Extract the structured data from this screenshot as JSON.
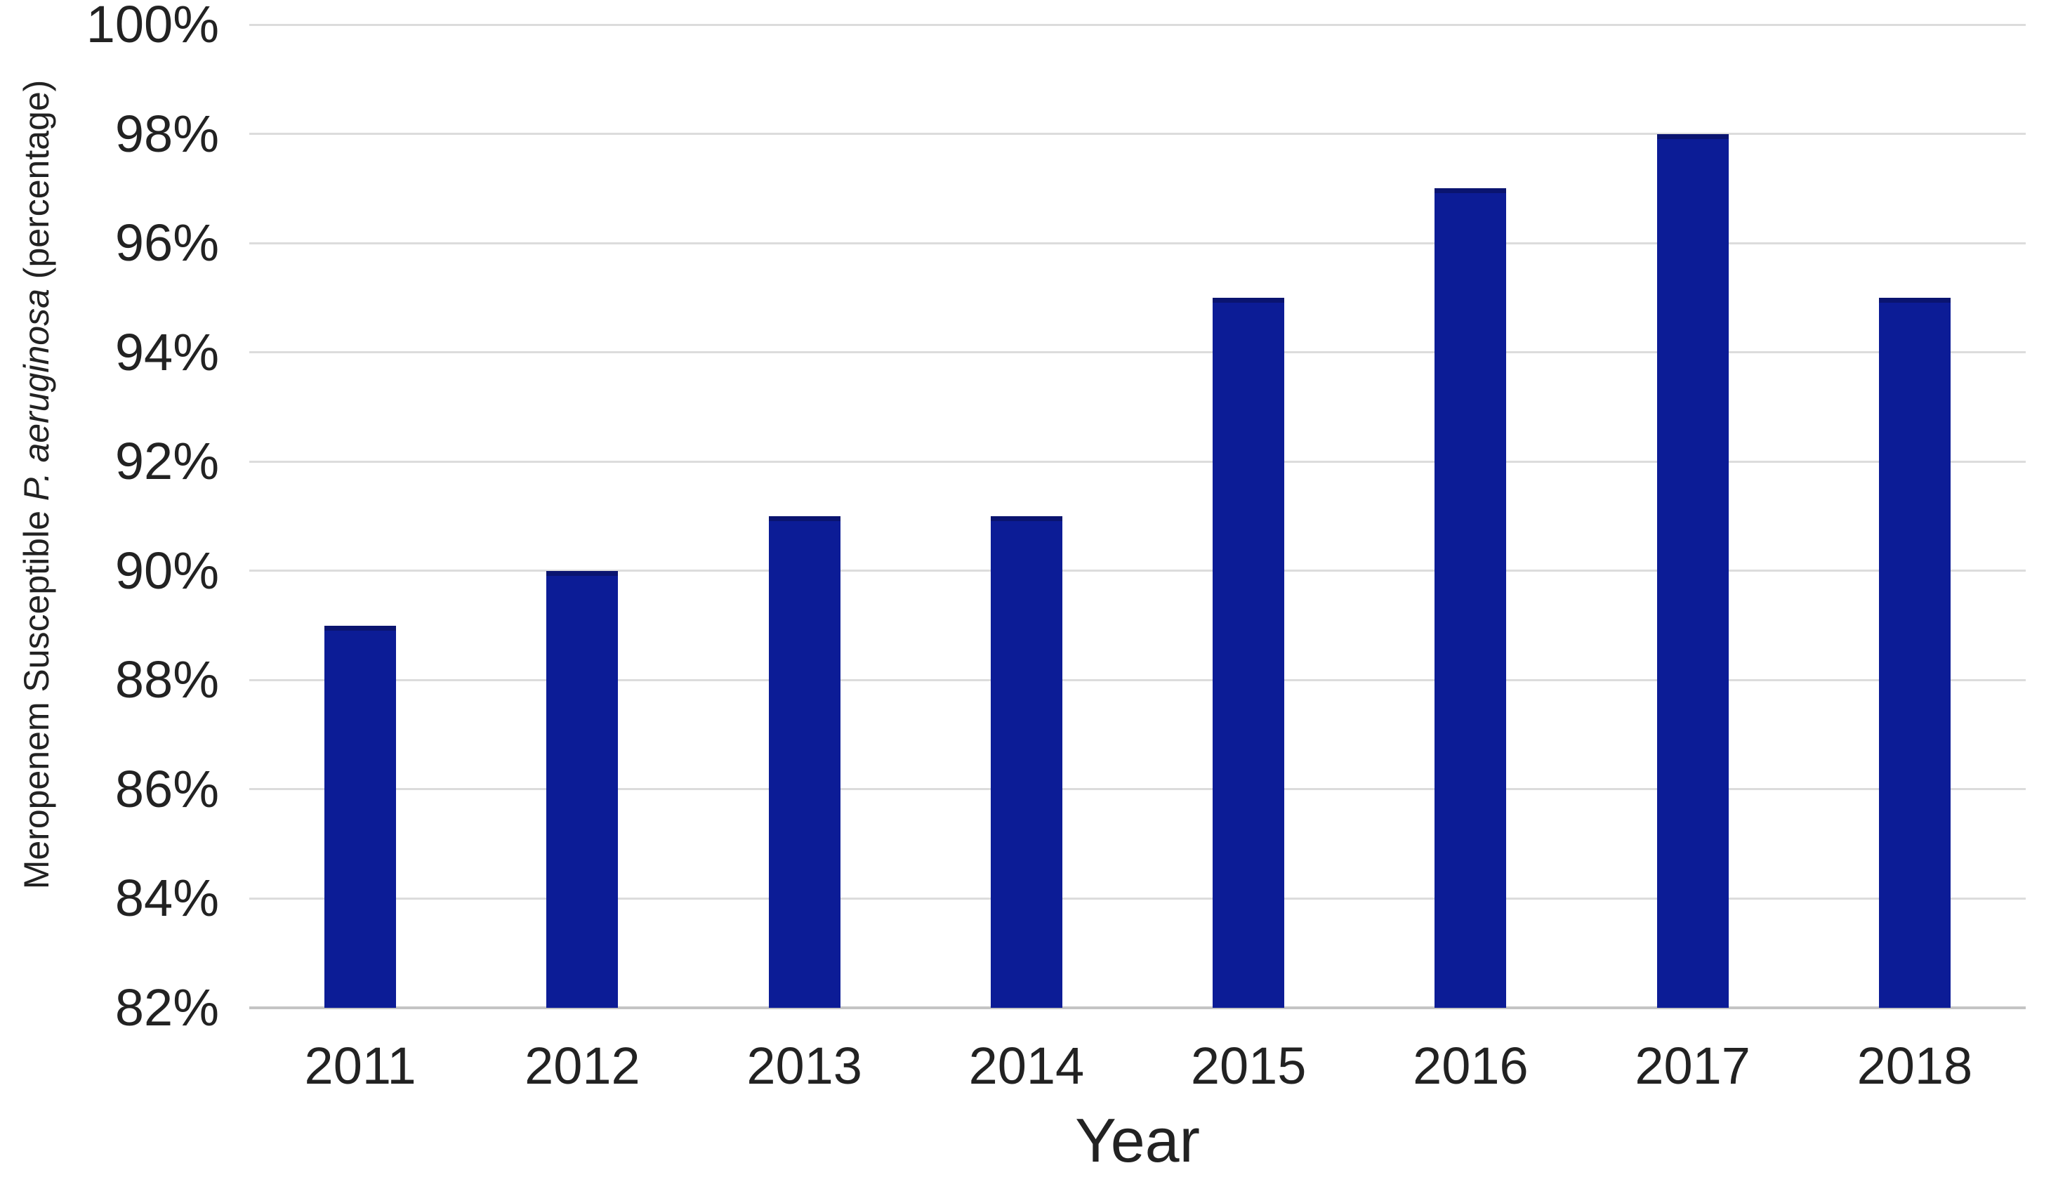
{
  "chart_data": {
    "type": "bar",
    "title": "",
    "categories": [
      "2011",
      "2012",
      "2013",
      "2014",
      "2015",
      "2016",
      "2017",
      "2018"
    ],
    "values": [
      89,
      90,
      91,
      91,
      95,
      97,
      98,
      95
    ],
    "xlabel": "Year",
    "ylabel": "Meropenem Susceptible P. aeruginosa (percentage)",
    "ylabel_parts": {
      "prefix": "Meropenem Susceptible ",
      "italic": "P. aeruginosa",
      "suffix": " (percentage)"
    },
    "ylim": [
      82,
      100
    ],
    "ytick_step": 2,
    "yticks": [
      {
        "value": 100,
        "label": "100%"
      },
      {
        "value": 98,
        "label": "98%"
      },
      {
        "value": 96,
        "label": "96%"
      },
      {
        "value": 94,
        "label": "94%"
      },
      {
        "value": 92,
        "label": "92%"
      },
      {
        "value": 90,
        "label": "90%"
      },
      {
        "value": 88,
        "label": "88%"
      },
      {
        "value": 86,
        "label": "86%"
      },
      {
        "value": 84,
        "label": "84%"
      },
      {
        "value": 82,
        "label": "82%"
      }
    ],
    "grid": true,
    "legend": "none",
    "bar_color": "#0c1c96",
    "gridline_color": "#dcdcdc",
    "axis_line_color": "#c4c4c4",
    "text_color": "#222222"
  }
}
